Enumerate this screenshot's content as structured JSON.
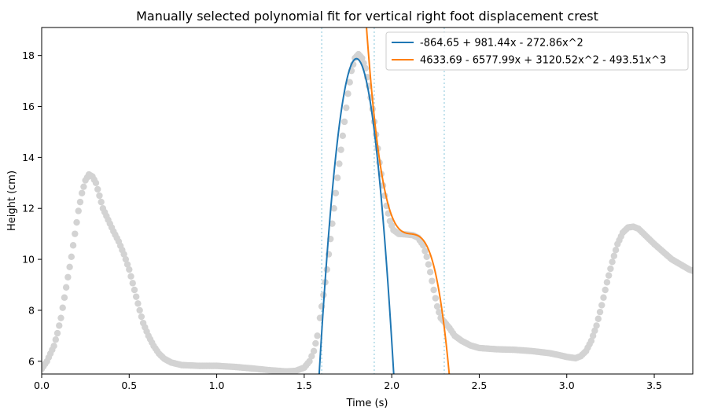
{
  "chart_data": {
    "type": "scatter",
    "title": "Manually selected polynomial fit for vertical right foot displacement crest",
    "xlabel": "Time (s)",
    "ylabel": "Height (cm)",
    "xlim": [
      0.0,
      3.72
    ],
    "ylim": [
      5.5,
      19.1
    ],
    "xticks": [
      0.0,
      0.5,
      1.0,
      1.5,
      2.0,
      2.5,
      3.0,
      3.5
    ],
    "xtick_labels": [
      "0.0",
      "0.5",
      "1.0",
      "1.5",
      "2.0",
      "2.5",
      "3.0",
      "3.5"
    ],
    "yticks": [
      6,
      8,
      10,
      12,
      14,
      16,
      18
    ],
    "ytick_labels": [
      "6",
      "8",
      "10",
      "12",
      "14",
      "16",
      "18"
    ],
    "grid": false,
    "legend_position": "top-right",
    "scatter_color": "#d3d3d3",
    "scatter_keypoints": [
      [
        0.0,
        5.7
      ],
      [
        0.03,
        6.0
      ],
      [
        0.05,
        6.3
      ],
      [
        0.07,
        6.6
      ],
      [
        0.09,
        7.1
      ],
      [
        0.11,
        7.7
      ],
      [
        0.13,
        8.5
      ],
      [
        0.15,
        9.3
      ],
      [
        0.17,
        10.1
      ],
      [
        0.19,
        11.0
      ],
      [
        0.21,
        11.9
      ],
      [
        0.23,
        12.6
      ],
      [
        0.25,
        13.1
      ],
      [
        0.27,
        13.33
      ],
      [
        0.29,
        13.25
      ],
      [
        0.31,
        13.0
      ],
      [
        0.33,
        12.5
      ],
      [
        0.35,
        12.0
      ],
      [
        0.38,
        11.55
      ],
      [
        0.41,
        11.1
      ],
      [
        0.44,
        10.7
      ],
      [
        0.47,
        10.2
      ],
      [
        0.5,
        9.6
      ],
      [
        0.53,
        8.8
      ],
      [
        0.56,
        8.0
      ],
      [
        0.58,
        7.5
      ],
      [
        0.61,
        7.0
      ],
      [
        0.64,
        6.6
      ],
      [
        0.67,
        6.3
      ],
      [
        0.7,
        6.1
      ],
      [
        0.74,
        5.95
      ],
      [
        0.8,
        5.85
      ],
      [
        0.9,
        5.82
      ],
      [
        1.0,
        5.82
      ],
      [
        1.1,
        5.78
      ],
      [
        1.2,
        5.72
      ],
      [
        1.3,
        5.65
      ],
      [
        1.4,
        5.6
      ],
      [
        1.45,
        5.62
      ],
      [
        1.5,
        5.75
      ],
      [
        1.53,
        6.0
      ],
      [
        1.555,
        6.4
      ],
      [
        1.575,
        7.0
      ],
      [
        1.59,
        7.7
      ],
      [
        1.61,
        8.6
      ],
      [
        1.63,
        9.6
      ],
      [
        1.65,
        10.8
      ],
      [
        1.67,
        12.0
      ],
      [
        1.69,
        13.2
      ],
      [
        1.71,
        14.3
      ],
      [
        1.73,
        15.4
      ],
      [
        1.75,
        16.5
      ],
      [
        1.77,
        17.4
      ],
      [
        1.79,
        17.9
      ],
      [
        1.81,
        18.05
      ],
      [
        1.83,
        17.9
      ],
      [
        1.85,
        17.5
      ],
      [
        1.87,
        16.8
      ],
      [
        1.89,
        15.9
      ],
      [
        1.91,
        14.9
      ],
      [
        1.93,
        13.8
      ],
      [
        1.95,
        12.9
      ],
      [
        1.97,
        12.1
      ],
      [
        1.99,
        11.5
      ],
      [
        2.01,
        11.15
      ],
      [
        2.04,
        11.0
      ],
      [
        2.08,
        10.98
      ],
      [
        2.12,
        10.95
      ],
      [
        2.15,
        10.85
      ],
      [
        2.18,
        10.55
      ],
      [
        2.2,
        10.1
      ],
      [
        2.22,
        9.5
      ],
      [
        2.24,
        8.8
      ],
      [
        2.26,
        8.15
      ],
      [
        2.28,
        7.7
      ],
      [
        2.3,
        7.55
      ],
      [
        2.33,
        7.3
      ],
      [
        2.36,
        7.0
      ],
      [
        2.4,
        6.8
      ],
      [
        2.45,
        6.62
      ],
      [
        2.5,
        6.52
      ],
      [
        2.6,
        6.47
      ],
      [
        2.7,
        6.45
      ],
      [
        2.8,
        6.4
      ],
      [
        2.9,
        6.32
      ],
      [
        2.95,
        6.25
      ],
      [
        3.0,
        6.17
      ],
      [
        3.05,
        6.12
      ],
      [
        3.08,
        6.2
      ],
      [
        3.11,
        6.4
      ],
      [
        3.14,
        6.8
      ],
      [
        3.17,
        7.4
      ],
      [
        3.2,
        8.2
      ],
      [
        3.23,
        9.1
      ],
      [
        3.26,
        9.9
      ],
      [
        3.29,
        10.6
      ],
      [
        3.32,
        11.05
      ],
      [
        3.35,
        11.25
      ],
      [
        3.38,
        11.28
      ],
      [
        3.41,
        11.2
      ],
      [
        3.44,
        11.0
      ],
      [
        3.47,
        10.8
      ],
      [
        3.5,
        10.6
      ],
      [
        3.55,
        10.3
      ],
      [
        3.6,
        10.0
      ],
      [
        3.65,
        9.8
      ],
      [
        3.7,
        9.6
      ],
      [
        3.72,
        9.55
      ]
    ],
    "vlines": {
      "x": [
        1.6,
        1.9,
        2.3
      ],
      "color": "#add8e6"
    },
    "series": [
      {
        "name": "-864.65 + 981.44x - 272.86x^2",
        "color": "#1f77b4",
        "coefficients": [
          -864.65,
          981.44,
          -272.86
        ],
        "x_range": [
          1.58,
          2.02
        ]
      },
      {
        "name": "4633.69 - 6577.99x + 3120.52x^2 - 493.51x^3",
        "color": "#ff7f0e",
        "coefficients": [
          4633.69,
          -6577.99,
          3120.52,
          -493.51
        ],
        "x_range": [
          1.84,
          2.34
        ]
      }
    ]
  }
}
